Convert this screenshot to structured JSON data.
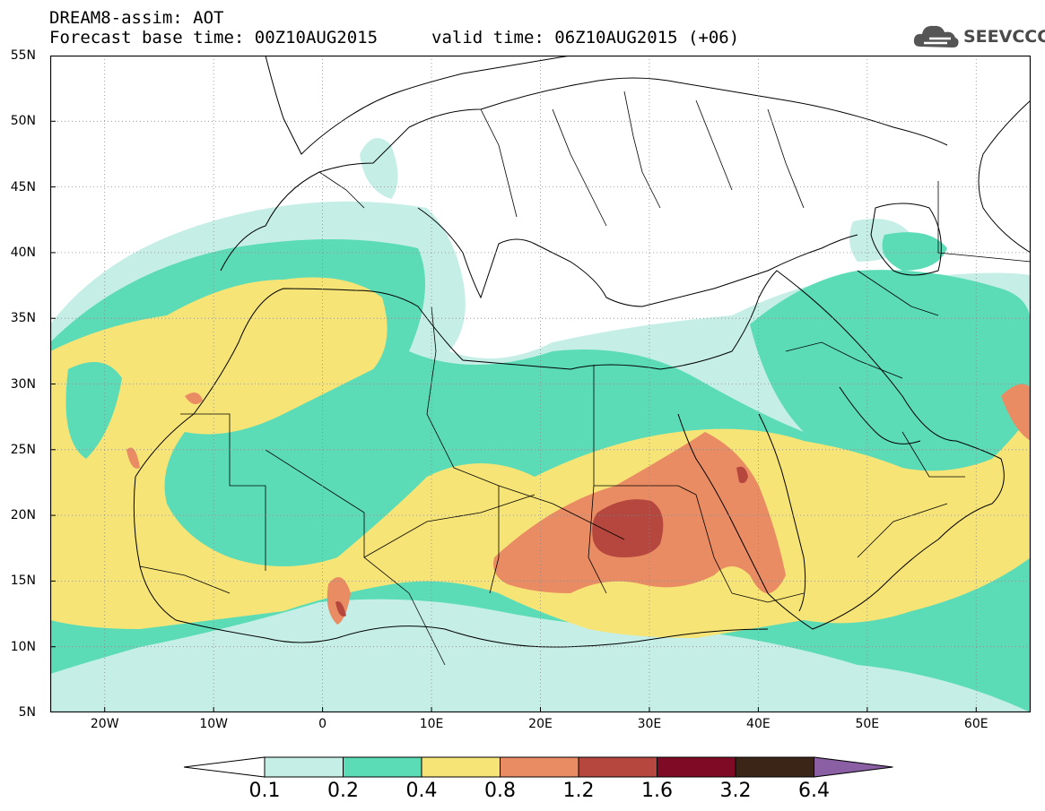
{
  "header": {
    "line1": "DREAM8-assim: AOT",
    "line2": "Forecast base time: 00Z10AUG2015",
    "line3": "valid time: 06Z10AUG2015 (+06)"
  },
  "logo": {
    "text": "SEEVCCC",
    "icon": "cloud-icon"
  },
  "map": {
    "lat_labels": [
      "55N",
      "50N",
      "45N",
      "40N",
      "35N",
      "30N",
      "25N",
      "20N",
      "15N",
      "10N",
      "5N"
    ],
    "lon_labels": [
      "20W",
      "10W",
      "0",
      "10E",
      "20E",
      "30E",
      "40E",
      "50E",
      "60E"
    ],
    "lon_range": [
      -25,
      65
    ],
    "lat_range": [
      5,
      55
    ],
    "grid": "dotted",
    "field": "AOT"
  },
  "colorbar": {
    "labels": [
      "0.1",
      "0.2",
      "0.4",
      "0.8",
      "1.2",
      "1.6",
      "3.2",
      "6.4"
    ],
    "colors": [
      "#c5efe6",
      "#5bdcb7",
      "#f7e476",
      "#ea8c63",
      "#b5473f",
      "#7e0a25",
      "#3a2516",
      "#8a5fa3"
    ]
  }
}
